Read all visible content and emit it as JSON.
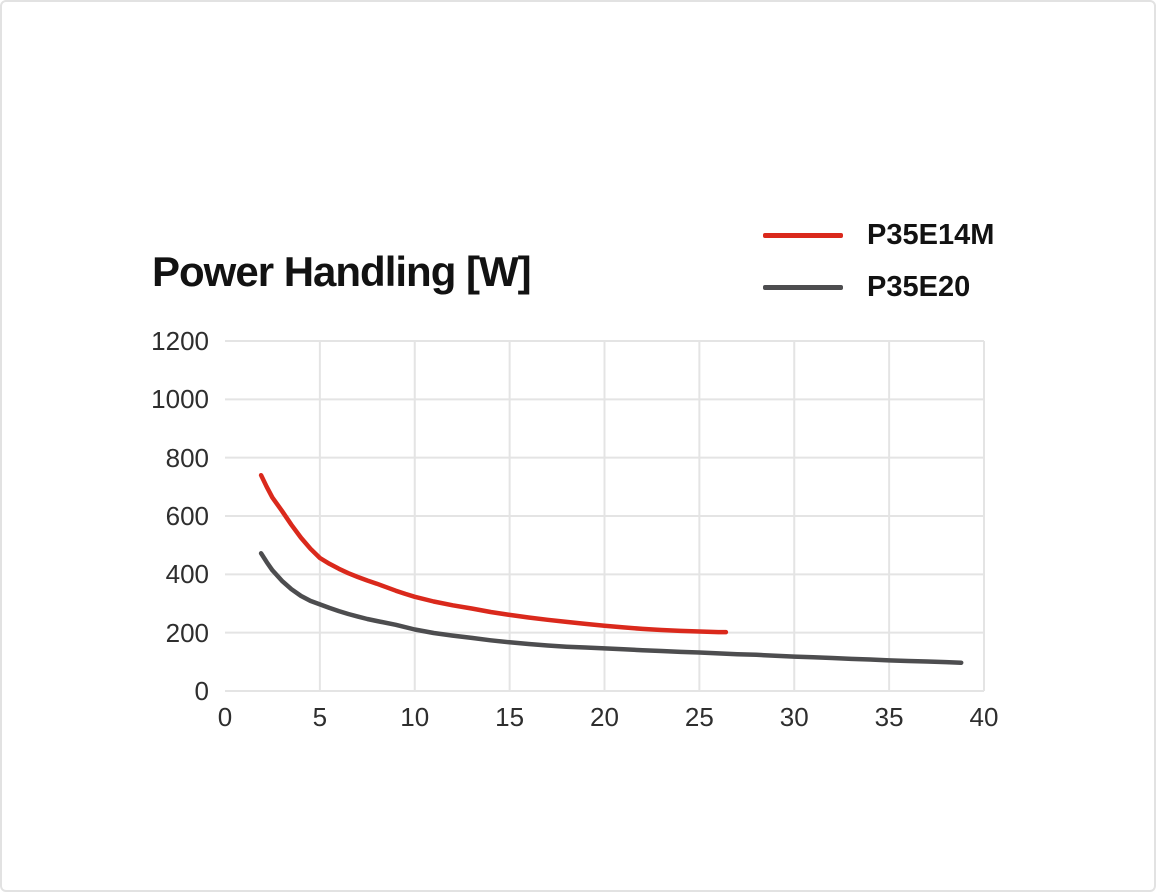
{
  "page": {
    "background": "#ffffff",
    "border_color": "#e2e2e2"
  },
  "header": {
    "title": "Power Handling [W]"
  },
  "legend": {
    "position": "top-right",
    "items": [
      {
        "label": "P35E14M",
        "color": "#da291c"
      },
      {
        "label": "P35E20",
        "color": "#4d4d4f"
      }
    ]
  },
  "chart_data": {
    "type": "line",
    "title": "Power Handling [W]",
    "xlabel": "",
    "ylabel": "",
    "xlim": [
      0,
      40
    ],
    "ylim": [
      0,
      1200
    ],
    "x_ticks": [
      0,
      5,
      10,
      15,
      20,
      25,
      30,
      35,
      40
    ],
    "y_ticks": [
      0,
      200,
      400,
      600,
      800,
      1000,
      1200
    ],
    "grid": true,
    "grid_color": "#e4e4e4",
    "legend_position": "top-right",
    "series": [
      {
        "name": "P35E14M",
        "color": "#da291c",
        "points": [
          [
            1.9,
            740
          ],
          [
            2.2,
            700
          ],
          [
            2.5,
            663
          ],
          [
            3,
            618
          ],
          [
            3.5,
            570
          ],
          [
            4,
            526
          ],
          [
            4.5,
            488
          ],
          [
            5,
            456
          ],
          [
            5.5,
            436
          ],
          [
            6,
            419
          ],
          [
            6.5,
            404
          ],
          [
            7,
            391
          ],
          [
            7.5,
            379
          ],
          [
            8,
            368
          ],
          [
            8.5,
            356
          ],
          [
            9,
            344
          ],
          [
            9.5,
            333
          ],
          [
            10,
            323
          ],
          [
            11,
            307
          ],
          [
            12,
            294
          ],
          [
            13,
            283
          ],
          [
            14,
            271
          ],
          [
            15,
            261
          ],
          [
            16,
            252
          ],
          [
            17,
            244
          ],
          [
            18,
            237
          ],
          [
            19,
            230
          ],
          [
            20,
            224
          ],
          [
            21,
            218
          ],
          [
            22,
            213
          ],
          [
            23,
            209
          ],
          [
            24,
            206
          ],
          [
            25,
            204
          ],
          [
            26,
            202
          ],
          [
            26.4,
            202
          ]
        ]
      },
      {
        "name": "P35E20",
        "color": "#4d4d4f",
        "points": [
          [
            1.9,
            472
          ],
          [
            2.2,
            442
          ],
          [
            2.5,
            414
          ],
          [
            3,
            378
          ],
          [
            3.5,
            349
          ],
          [
            4,
            326
          ],
          [
            4.5,
            309
          ],
          [
            5,
            297
          ],
          [
            5.5,
            285
          ],
          [
            6,
            274
          ],
          [
            6.5,
            264
          ],
          [
            7,
            255
          ],
          [
            7.5,
            247
          ],
          [
            8,
            240
          ],
          [
            9,
            227
          ],
          [
            10,
            211
          ],
          [
            11,
            199
          ],
          [
            12,
            190
          ],
          [
            13,
            182
          ],
          [
            14,
            174
          ],
          [
            15,
            167
          ],
          [
            16,
            161
          ],
          [
            17,
            156
          ],
          [
            18,
            152
          ],
          [
            19,
            149
          ],
          [
            20,
            146
          ],
          [
            21,
            143
          ],
          [
            22,
            140
          ],
          [
            23,
            137
          ],
          [
            24,
            134
          ],
          [
            25,
            132
          ],
          [
            26,
            129
          ],
          [
            27,
            126
          ],
          [
            28,
            124
          ],
          [
            29,
            121
          ],
          [
            30,
            118
          ],
          [
            31,
            116
          ],
          [
            32,
            113
          ],
          [
            33,
            110
          ],
          [
            34,
            108
          ],
          [
            35,
            105
          ],
          [
            36,
            103
          ],
          [
            37,
            101
          ],
          [
            38,
            99
          ],
          [
            38.8,
            97
          ]
        ]
      }
    ]
  }
}
